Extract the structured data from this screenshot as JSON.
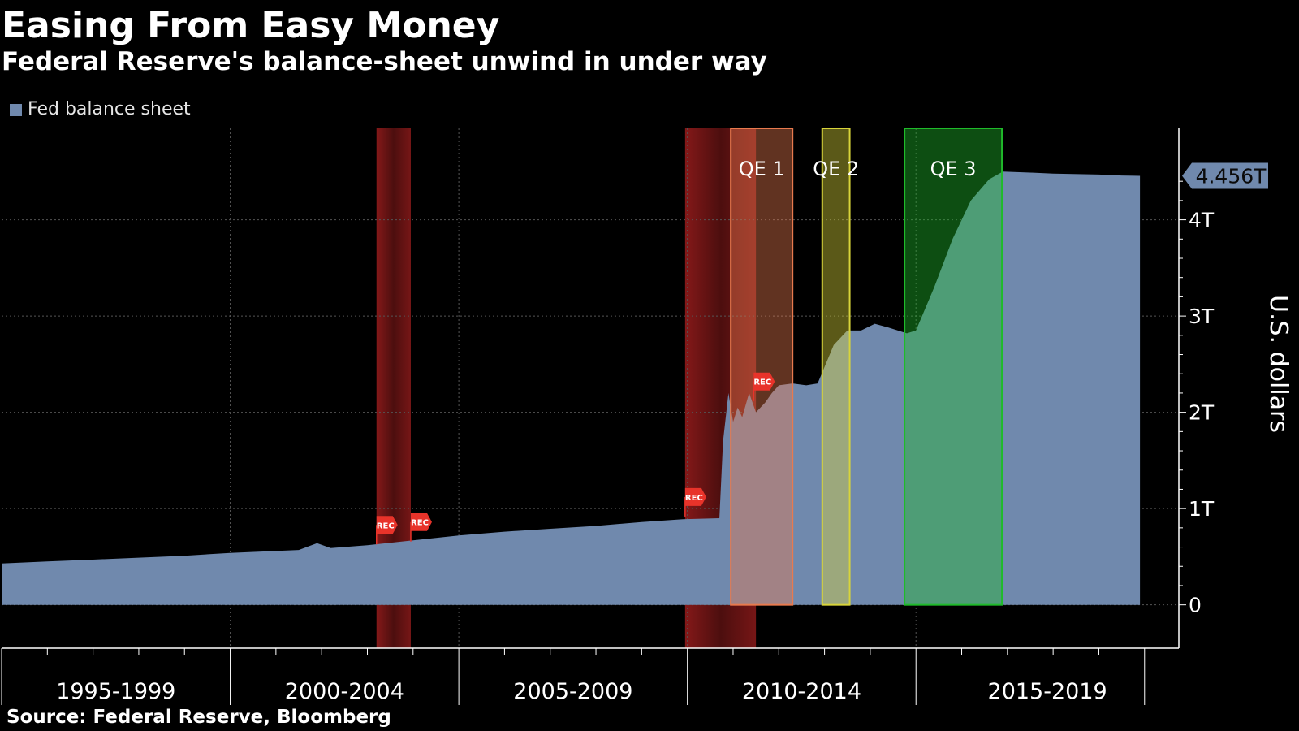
{
  "title": "Easing From Easy Money",
  "subtitle": "Federal Reserve's balance-sheet unwind in under way",
  "legend_label": "Fed balance sheet",
  "source": "Source: Federal Reserve, Bloomberg",
  "colors": {
    "background": "#000000",
    "area": "#7089ad",
    "recession": "#8b1a1a",
    "qe1": "#e87a4e",
    "qe2": "#d8d43a",
    "qe3": "#1fbb2a",
    "rec_flag": "#e8332a",
    "last_value_box": "#7089ad"
  },
  "chart_data": {
    "type": "area",
    "series": [
      {
        "name": "Fed balance sheet",
        "unit": "U.S. dollars (trillions)",
        "x": [
          1993.0,
          1994.0,
          1995.0,
          1996.0,
          1997.0,
          1998.0,
          1999.5,
          1999.9,
          2000.2,
          2001.0,
          2002.0,
          2003.0,
          2004.0,
          2005.0,
          2006.0,
          2007.0,
          2007.9,
          2008.7,
          2008.78,
          2008.9,
          2009.0,
          2009.1,
          2009.2,
          2009.35,
          2009.5,
          2009.7,
          2009.85,
          2010.0,
          2010.3,
          2010.6,
          2010.85,
          2011.2,
          2011.5,
          2011.8,
          2012.1,
          2012.4,
          2012.8,
          2013.0,
          2013.4,
          2013.8,
          2014.2,
          2014.6,
          2014.9,
          2015.5,
          2016.0,
          2017.0,
          2017.5,
          2017.9
        ],
        "values": [
          0.43,
          0.45,
          0.47,
          0.49,
          0.51,
          0.54,
          0.57,
          0.64,
          0.59,
          0.62,
          0.67,
          0.72,
          0.76,
          0.79,
          0.82,
          0.86,
          0.89,
          0.9,
          1.7,
          2.2,
          1.9,
          2.05,
          1.95,
          2.2,
          2.0,
          2.1,
          2.2,
          2.28,
          2.3,
          2.28,
          2.3,
          2.7,
          2.85,
          2.85,
          2.92,
          2.88,
          2.82,
          2.85,
          3.3,
          3.8,
          4.2,
          4.42,
          4.5,
          4.49,
          4.48,
          4.47,
          4.46,
          4.456
        ]
      }
    ],
    "x_ticks": [
      "1995-1999",
      "2000-2004",
      "2005-2009",
      "2010-2014",
      "2015-2019"
    ],
    "y_ticks": [
      "0",
      "1T",
      "2T",
      "3T",
      "4T"
    ],
    "ylabel": "U.S. dollars",
    "ylim": [
      -0.45,
      4.95
    ],
    "last_value_label": "4.456T",
    "shaded_periods": [
      {
        "label": "",
        "type": "recession",
        "start": 2001.2,
        "end": 2001.95
      },
      {
        "label": "",
        "type": "recession",
        "start": 2007.95,
        "end": 2009.5
      },
      {
        "label": "QE 1",
        "type": "qe",
        "start": 2008.95,
        "end": 2010.3
      },
      {
        "label": "QE 2",
        "type": "qe",
        "start": 2010.95,
        "end": 2011.55
      },
      {
        "label": "QE 3",
        "type": "qe",
        "start": 2012.75,
        "end": 2014.88
      }
    ],
    "flags": [
      {
        "label": "REC",
        "x": 2001.2,
        "y": 0.83
      },
      {
        "label": "REC",
        "x": 2001.95,
        "y": 0.86
      },
      {
        "label": "REC",
        "x": 2007.95,
        "y": 1.12
      },
      {
        "label": "REC",
        "x": 2009.45,
        "y": 2.32
      }
    ],
    "grid": true,
    "legend_position": "top-left"
  }
}
